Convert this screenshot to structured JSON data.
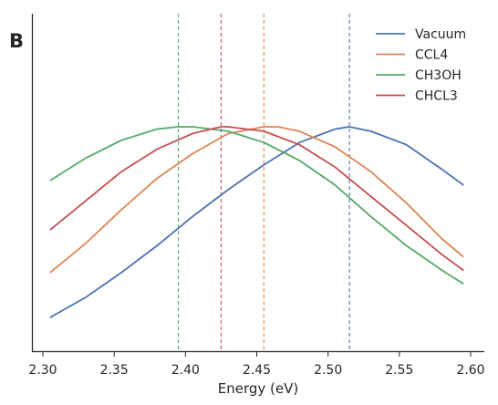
{
  "panel_label": "B",
  "chart_data": {
    "type": "line",
    "title": "",
    "xlabel": "Energy (eV)",
    "ylabel": "",
    "xlim": [
      2.3,
      2.6
    ],
    "ylim": [
      0.0,
      1.0
    ],
    "xticks": [
      "2.30",
      "2.35",
      "2.40",
      "2.45",
      "2.50",
      "2.55",
      "2.60"
    ],
    "y_ticks_shown": false,
    "grid": false,
    "legend_position": "top-right",
    "series": [
      {
        "name": "Vacuum",
        "color": "#4c72b0",
        "peak": 2.515,
        "x": [
          2.305,
          2.33,
          2.355,
          2.38,
          2.405,
          2.43,
          2.455,
          2.48,
          2.505,
          2.515,
          2.53,
          2.555,
          2.58,
          2.595
        ],
        "y": [
          0.15,
          0.24,
          0.35,
          0.47,
          0.6,
          0.72,
          0.83,
          0.93,
          0.99,
          1.0,
          0.98,
          0.92,
          0.81,
          0.74
        ]
      },
      {
        "name": "CCL4",
        "color": "#dd8452",
        "peak": 2.455,
        "x": [
          2.305,
          2.33,
          2.355,
          2.38,
          2.405,
          2.43,
          2.455,
          2.465,
          2.48,
          2.505,
          2.53,
          2.555,
          2.58,
          2.595
        ],
        "y": [
          0.35,
          0.48,
          0.63,
          0.77,
          0.88,
          0.97,
          1.0,
          1.0,
          0.98,
          0.91,
          0.8,
          0.66,
          0.5,
          0.42
        ]
      },
      {
        "name": "CH3OH",
        "color": "#55a868",
        "peak": 2.395,
        "x": [
          2.305,
          2.33,
          2.355,
          2.38,
          2.395,
          2.405,
          2.43,
          2.455,
          2.48,
          2.505,
          2.53,
          2.555,
          2.58,
          2.595
        ],
        "y": [
          0.76,
          0.86,
          0.94,
          0.99,
          1.0,
          1.0,
          0.98,
          0.93,
          0.85,
          0.74,
          0.6,
          0.47,
          0.36,
          0.3
        ]
      },
      {
        "name": "CHCL3",
        "color": "#c44e52",
        "peak": 2.425,
        "x": [
          2.305,
          2.33,
          2.355,
          2.38,
          2.405,
          2.425,
          2.43,
          2.455,
          2.48,
          2.505,
          2.53,
          2.555,
          2.58,
          2.595
        ],
        "y": [
          0.54,
          0.67,
          0.8,
          0.9,
          0.97,
          1.0,
          1.0,
          0.98,
          0.92,
          0.82,
          0.69,
          0.56,
          0.43,
          0.36
        ]
      }
    ]
  }
}
